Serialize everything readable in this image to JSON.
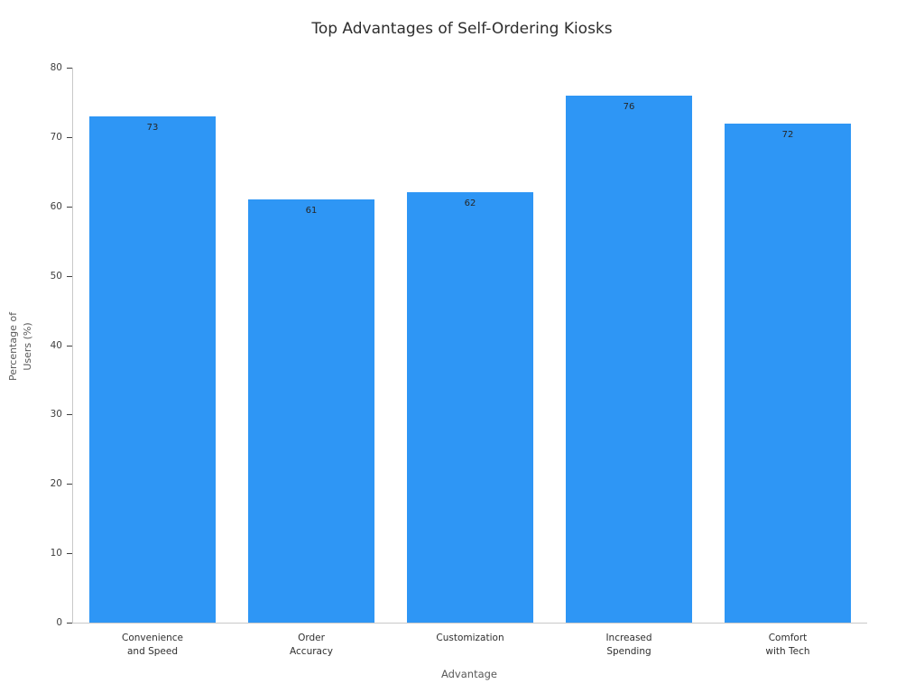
{
  "chart_data": {
    "type": "bar",
    "title": "Top Advantages of Self-Ordering Kiosks",
    "xlabel": "Advantage",
    "ylabel": "Percentage of\nUsers (%)",
    "categories": [
      "Convenience\nand Speed",
      "Order\nAccuracy",
      "Customization",
      "Increased\nSpending",
      "Comfort\nwith Tech"
    ],
    "values": [
      73,
      61,
      62,
      76,
      72
    ],
    "ylim": [
      0,
      80
    ],
    "yticks": [
      0,
      10,
      20,
      30,
      40,
      50,
      60,
      70,
      80
    ],
    "bar_color": "#2E96F5",
    "grid": false,
    "legend": false,
    "value_labels": true
  }
}
